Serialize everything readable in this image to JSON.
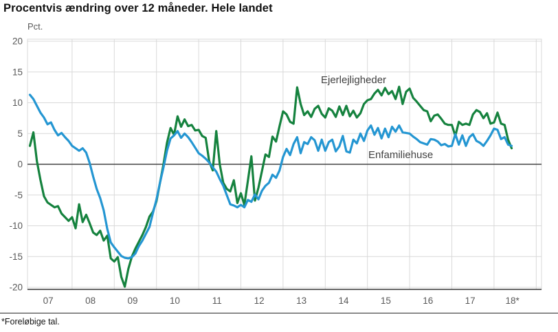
{
  "title": "Procentvis ændring over 12 måneder. Hele landet",
  "footnote": "*Foreløbige tal.",
  "colors": {
    "ejerlejligheder": "#15823e",
    "enfamiliehuse": "#2496d2",
    "grid": "#d9d9d9",
    "zero_line": "#404040",
    "axis_line": "#333333",
    "tick_text": "#595959",
    "annotation_text": "#404040",
    "background": "#ffffff"
  },
  "chart_data": {
    "type": "line",
    "title": "Procentvis ændring over 12 måneder. Hele landet",
    "xlabel": "",
    "ylabel": "Pct.",
    "ylim": [
      -20,
      20
    ],
    "y_ticks": [
      20,
      15,
      10,
      5,
      0,
      -5,
      -10,
      -15,
      -20
    ],
    "x_tick_labels": [
      "07",
      "08",
      "09",
      "10",
      "11",
      "12",
      "13",
      "14",
      "15",
      "16",
      "17",
      "18*"
    ],
    "x_start": "2007-01",
    "x_end": "2018-06",
    "frequency": "monthly",
    "grid": true,
    "legend_position": "inline-annotations",
    "series": [
      {
        "name": "Ejerlejligheder",
        "color": "#15823e",
        "values": [
          3.0,
          5.2,
          0.5,
          -2.5,
          -5.2,
          -6.2,
          -6.6,
          -7.0,
          -6.8,
          -8.0,
          -8.6,
          -9.2,
          -8.6,
          -10.4,
          -6.5,
          -9.4,
          -8.2,
          -9.6,
          -11.1,
          -11.5,
          -10.8,
          -12.4,
          -11.6,
          -15.3,
          -15.8,
          -15.1,
          -18.3,
          -19.9,
          -17.0,
          -15.0,
          -13.7,
          -12.6,
          -11.5,
          -10.2,
          -8.5,
          -7.7,
          -6.0,
          -3.0,
          0.0,
          3.5,
          5.9,
          4.8,
          7.8,
          6.1,
          7.3,
          6.2,
          6.4,
          5.5,
          5.6,
          4.6,
          4.3,
          0.5,
          -1.0,
          5.4,
          0.0,
          -3.0,
          -4.0,
          -4.4,
          -2.6,
          -6.3,
          -4.7,
          -6.6,
          -2.7,
          1.3,
          -5.9,
          -3.8,
          -1.1,
          1.6,
          1.2,
          4.5,
          3.7,
          6.2,
          8.6,
          8.1,
          6.9,
          6.6,
          12.5,
          9.8,
          8.0,
          8.6,
          7.7,
          9.0,
          9.5,
          8.2,
          7.6,
          9.1,
          8.7,
          7.7,
          9.4,
          8.0,
          9.5,
          7.8,
          8.7,
          7.6,
          8.3,
          9.8,
          10.4,
          10.6,
          11.5,
          12.1,
          11.2,
          12.4,
          11.4,
          11.9,
          10.6,
          12.6,
          9.8,
          11.8,
          12.3,
          10.8,
          10.2,
          9.5,
          8.8,
          8.6,
          7.0,
          7.9,
          8.1,
          7.4,
          6.6,
          6.4,
          6.4,
          4.6,
          6.9,
          6.4,
          6.6,
          6.4,
          8.1,
          8.8,
          8.5,
          7.5,
          8.3,
          6.6,
          6.8,
          8.4,
          6.6,
          6.4,
          4.0,
          2.6
        ]
      },
      {
        "name": "Enfamiliehuse",
        "color": "#2496d2",
        "values": [
          11.3,
          10.6,
          9.5,
          8.4,
          7.6,
          6.5,
          6.8,
          5.6,
          4.7,
          5.1,
          4.4,
          3.8,
          3.0,
          2.6,
          2.2,
          2.6,
          1.9,
          0.2,
          -2.0,
          -4.0,
          -5.5,
          -7.5,
          -10.5,
          -12.7,
          -13.5,
          -14.2,
          -14.9,
          -15.2,
          -15.3,
          -15.1,
          -14.5,
          -13.3,
          -12.4,
          -11.3,
          -10.2,
          -7.9,
          -5.7,
          -3.0,
          -0.5,
          2.2,
          4.2,
          4.7,
          5.4,
          4.3,
          5.0,
          4.4,
          3.6,
          2.7,
          1.8,
          1.4,
          0.9,
          0.3,
          -0.5,
          -1.2,
          -2.4,
          -3.5,
          -5.0,
          -6.5,
          -6.7,
          -7.0,
          -6.6,
          -7.0,
          -5.8,
          -6.1,
          -4.9,
          -5.7,
          -4.3,
          -3.5,
          -3.0,
          -1.7,
          -2.2,
          -1.0,
          1.2,
          2.5,
          1.5,
          3.3,
          4.4,
          1.8,
          3.6,
          3.3,
          4.4,
          3.9,
          2.2,
          4.0,
          2.2,
          3.6,
          4.0,
          2.1,
          2.9,
          4.6,
          2.1,
          1.9,
          4.0,
          3.4,
          5.0,
          3.8,
          5.5,
          6.3,
          4.8,
          5.9,
          4.2,
          5.8,
          4.4,
          6.1,
          5.3,
          6.3,
          5.2,
          5.1,
          5.0,
          4.5,
          4.1,
          3.6,
          3.4,
          3.2,
          4.1,
          4.0,
          3.7,
          3.1,
          3.3,
          2.9,
          3.0,
          4.9,
          3.2,
          4.7,
          3.0,
          4.4,
          4.9,
          3.8,
          3.5,
          3.0,
          3.8,
          4.7,
          5.8,
          5.6,
          4.1,
          4.4,
          3.2,
          3.0
        ]
      }
    ],
    "annotations": [
      {
        "text": "Ejerlejligheder",
        "x": 467,
        "y": 121
      },
      {
        "text": "Enfamiliehuse",
        "x": 536,
        "y": 230
      }
    ]
  }
}
